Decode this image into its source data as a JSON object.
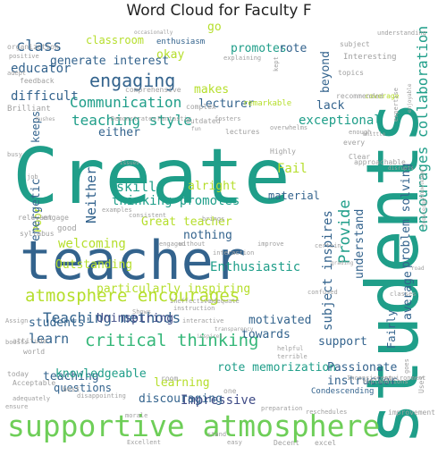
{
  "title": "Word Cloud for Faculty F",
  "palette": {
    "dark_blue": "#404c87",
    "navy": "#33638d",
    "teal": "#1f9e89",
    "green": "#35b779",
    "light_green": "#6ece58",
    "yellow_green": "#b5de2b",
    "grey": "#a0a0a0"
  },
  "words": [
    {
      "text": "Create",
      "color": "teal"
    },
    {
      "text": "students",
      "color": "teal"
    },
    {
      "text": "teacher",
      "color": "navy"
    },
    {
      "text": "supportive atmosphere",
      "color": "light_green"
    },
    {
      "text": "atmosphere encourages",
      "color": "yellow_green"
    },
    {
      "text": "critical thinking",
      "color": "green"
    },
    {
      "text": "Teaching methods",
      "color": "navy"
    },
    {
      "text": "teaching style",
      "color": "teal"
    },
    {
      "text": "Communication",
      "color": "teal"
    },
    {
      "text": "engaging",
      "color": "navy"
    },
    {
      "text": "class",
      "color": "navy"
    },
    {
      "text": "classroom",
      "color": "yellow_green"
    },
    {
      "text": "okay",
      "color": "yellow_green"
    },
    {
      "text": "go",
      "color": "yellow_green"
    },
    {
      "text": "promotes",
      "color": "teal"
    },
    {
      "text": "rote",
      "color": "navy"
    },
    {
      "text": "generate interest",
      "color": "navy"
    },
    {
      "text": "educator",
      "color": "navy"
    },
    {
      "text": "makes",
      "color": "yellow_green"
    },
    {
      "text": "lecturer",
      "color": "navy"
    },
    {
      "text": "difficult",
      "color": "navy"
    },
    {
      "text": "beyond",
      "color": "navy"
    },
    {
      "text": "lack",
      "color": "navy"
    },
    {
      "text": "exceptional",
      "color": "teal"
    },
    {
      "text": "either",
      "color": "navy"
    },
    {
      "text": "Neither",
      "color": "navy"
    },
    {
      "text": "skills",
      "color": "teal"
    },
    {
      "text": "alright",
      "color": "yellow_green"
    },
    {
      "text": "Fail",
      "color": "yellow_green"
    },
    {
      "text": "material",
      "color": "navy"
    },
    {
      "text": "thinking promotes",
      "color": "teal"
    },
    {
      "text": "Great teacher",
      "color": "yellow_green"
    },
    {
      "text": "welcoming",
      "color": "yellow_green"
    },
    {
      "text": "Poor",
      "color": "yellow_green"
    },
    {
      "text": "energetic",
      "color": "navy"
    },
    {
      "text": "keeps",
      "color": "navy"
    },
    {
      "text": "nothing",
      "color": "navy"
    },
    {
      "text": "Outstanding",
      "color": "yellow_green"
    },
    {
      "text": "Enthusiastic",
      "color": "teal"
    },
    {
      "text": "Provide",
      "color": "teal"
    },
    {
      "text": "encourages collaboration",
      "color": "teal"
    },
    {
      "text": "understand",
      "color": "navy"
    },
    {
      "text": "subject inspires",
      "color": "navy"
    },
    {
      "text": "problem solving",
      "color": "navy"
    },
    {
      "text": "average",
      "color": "navy"
    },
    {
      "text": "Fairly",
      "color": "navy"
    },
    {
      "text": "particularly inspiring",
      "color": "yellow_green"
    },
    {
      "text": "students'",
      "color": "navy"
    },
    {
      "text": "learn",
      "color": "navy"
    },
    {
      "text": "Uninspiring",
      "color": "dark_blue"
    },
    {
      "text": "motivated",
      "color": "navy"
    },
    {
      "text": "towards",
      "color": "navy"
    },
    {
      "text": "support",
      "color": "navy"
    },
    {
      "text": "rote memorization",
      "color": "teal"
    },
    {
      "text": "Passionate",
      "color": "navy"
    },
    {
      "text": "instructor",
      "color": "navy"
    },
    {
      "text": "teaching",
      "color": "navy"
    },
    {
      "text": "learning",
      "color": "yellow_green"
    },
    {
      "text": "knowledgeable",
      "color": "teal"
    },
    {
      "text": "Impressive",
      "color": "dark_blue"
    },
    {
      "text": "questions",
      "color": "navy"
    },
    {
      "text": "discouraging",
      "color": "navy"
    },
    {
      "text": "enthusiasm",
      "color": "navy"
    },
    {
      "text": "subject",
      "color": "grey"
    },
    {
      "text": "Interesting",
      "color": "grey"
    },
    {
      "text": "topics",
      "color": "grey"
    },
    {
      "text": "coverage",
      "color": "yellow_green"
    },
    {
      "text": "recommended",
      "color": "grey"
    },
    {
      "text": "remarkable",
      "color": "yellow_green"
    },
    {
      "text": "lectures",
      "color": "grey"
    },
    {
      "text": "outdated",
      "color": "grey"
    },
    {
      "text": "complex",
      "color": "grey"
    },
    {
      "text": "comprehensive",
      "color": "grey"
    },
    {
      "text": "feedback",
      "color": "grey"
    },
    {
      "text": "Brilliant",
      "color": "grey"
    },
    {
      "text": "organization",
      "color": "grey"
    },
    {
      "text": "positive",
      "color": "grey"
    },
    {
      "text": "adept",
      "color": "grey"
    },
    {
      "text": "explaining",
      "color": "grey"
    },
    {
      "text": "Demonstrates",
      "color": "grey"
    },
    {
      "text": "Fantastic",
      "color": "grey"
    },
    {
      "text": "fosters",
      "color": "grey"
    },
    {
      "text": "overwhelms",
      "color": "grey"
    },
    {
      "text": "Highly",
      "color": "grey"
    },
    {
      "text": "enough",
      "color": "grey"
    },
    {
      "text": "every",
      "color": "grey"
    },
    {
      "text": "Clear",
      "color": "grey"
    },
    {
      "text": "approachable",
      "color": "grey"
    },
    {
      "text": "relevant",
      "color": "grey"
    },
    {
      "text": "good",
      "color": "grey"
    },
    {
      "text": "engage",
      "color": "grey"
    },
    {
      "text": "syllabus",
      "color": "grey"
    },
    {
      "text": "busy",
      "color": "grey"
    },
    {
      "text": "consistent",
      "color": "grey"
    },
    {
      "text": "examples",
      "color": "grey"
    },
    {
      "text": "brings",
      "color": "grey"
    },
    {
      "text": "certain",
      "color": "grey"
    },
    {
      "text": "engaged",
      "color": "grey"
    },
    {
      "text": "without",
      "color": "grey"
    },
    {
      "text": "improve",
      "color": "grey"
    },
    {
      "text": "interaction",
      "color": "grey"
    },
    {
      "text": "confused",
      "color": "grey"
    },
    {
      "text": "Ineffective",
      "color": "grey"
    },
    {
      "text": "adequate",
      "color": "grey"
    },
    {
      "text": "instruction",
      "color": "grey"
    },
    {
      "text": "interactive",
      "color": "grey"
    },
    {
      "text": "helpful",
      "color": "grey"
    },
    {
      "text": "terrible",
      "color": "grey"
    },
    {
      "text": "Condescending",
      "color": "navy"
    },
    {
      "text": "Inconsistent",
      "color": "grey"
    },
    {
      "text": "explanations",
      "color": "grey"
    },
    {
      "text": "environment",
      "color": "grey"
    },
    {
      "text": "attitude",
      "color": "grey"
    },
    {
      "text": "world",
      "color": "grey"
    },
    {
      "text": "today",
      "color": "grey"
    },
    {
      "text": "Acceptable",
      "color": "grey"
    },
    {
      "text": "best",
      "color": "grey"
    },
    {
      "text": "room",
      "color": "grey"
    },
    {
      "text": "one",
      "color": "grey"
    },
    {
      "text": "Assign",
      "color": "grey"
    },
    {
      "text": "Shows",
      "color": "grey"
    },
    {
      "text": "boosts",
      "color": "grey"
    },
    {
      "text": "adequately",
      "color": "grey"
    },
    {
      "text": "ensure",
      "color": "grey"
    },
    {
      "text": "disappointing",
      "color": "grey"
    },
    {
      "text": "morale",
      "color": "grey"
    },
    {
      "text": "preparation",
      "color": "grey"
    },
    {
      "text": "reschedules",
      "color": "grey"
    },
    {
      "text": "improvement",
      "color": "grey"
    },
    {
      "text": "Uses",
      "color": "grey"
    },
    {
      "text": "goes",
      "color": "grey"
    },
    {
      "text": "Excellent",
      "color": "grey"
    },
    {
      "text": "easy",
      "color": "grey"
    },
    {
      "text": "stand",
      "color": "grey"
    },
    {
      "text": "Decent",
      "color": "grey"
    },
    {
      "text": "excel",
      "color": "grey"
    },
    {
      "text": "understanding",
      "color": "grey"
    },
    {
      "text": "occasionally",
      "color": "grey"
    },
    {
      "text": "fun",
      "color": "grey"
    },
    {
      "text": "inspires",
      "color": "grey"
    },
    {
      "text": "Rushes",
      "color": "grey"
    },
    {
      "text": "Issues",
      "color": "grey"
    },
    {
      "text": "Whittle",
      "color": "grey"
    },
    {
      "text": "transparency",
      "color": "grey"
    },
    {
      "text": "kept",
      "color": "grey"
    },
    {
      "text": "grading",
      "color": "grey"
    },
    {
      "text": "classes",
      "color": "grey"
    },
    {
      "text": "road",
      "color": "grey"
    },
    {
      "text": "knowledge",
      "color": "grey"
    },
    {
      "text": "Knowledge",
      "color": "grey"
    },
    {
      "text": "disrupts",
      "color": "grey"
    },
    {
      "text": "expertise",
      "color": "grey"
    },
    {
      "text": "enjoyable",
      "color": "grey"
    },
    {
      "text": "job",
      "color": "grey"
    }
  ]
}
